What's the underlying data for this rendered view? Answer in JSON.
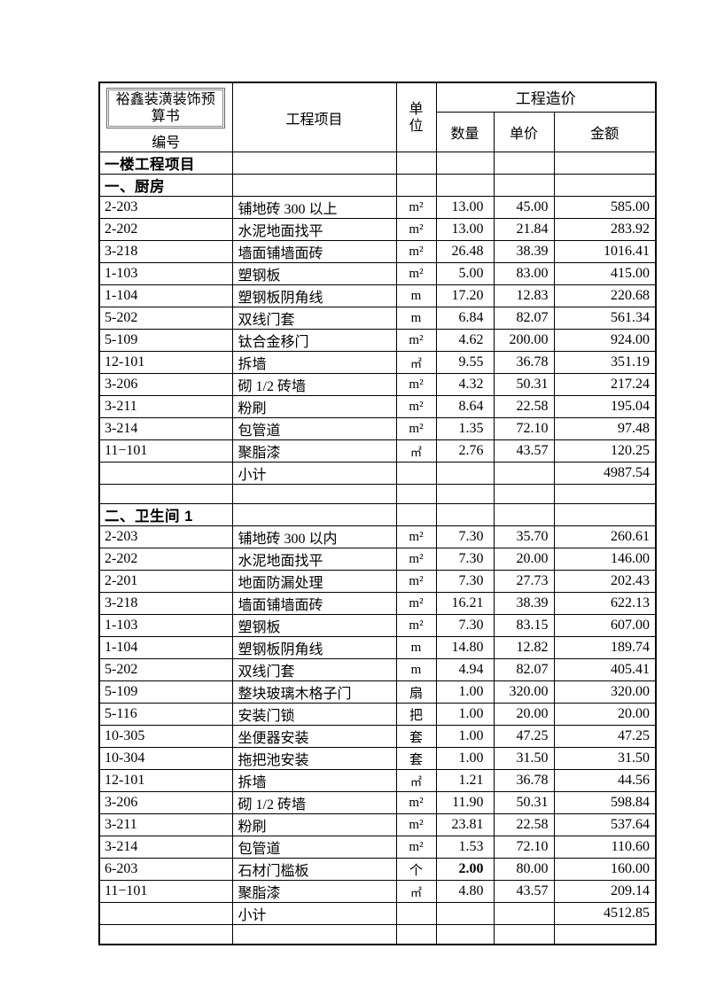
{
  "header": {
    "org_title": "裕鑫装潢装饰预算书",
    "code_label": "编号",
    "project_label": "工程项目",
    "unit_label": "单位",
    "cost_label": "工程造价",
    "qty_label": "数量",
    "price_label": "单价",
    "amount_label": "金额"
  },
  "floor_title": "一楼工程项目",
  "subtotal_label": "小计",
  "sections": [
    {
      "title": "一、厨房",
      "rows": [
        {
          "code": "2-203",
          "item": "铺地砖 300 以上",
          "unit": "m²",
          "qty": "13.00",
          "price": "45.00",
          "amount": "585.00"
        },
        {
          "code": "2-202",
          "item": "水泥地面找平",
          "unit": "m²",
          "qty": "13.00",
          "price": "21.84",
          "amount": "283.92"
        },
        {
          "code": "3-218",
          "item": "墙面铺墙面砖",
          "unit": "m²",
          "qty": "26.48",
          "price": "38.39",
          "amount": "1016.41"
        },
        {
          "code": "1-103",
          "item": "塑钢板",
          "unit": "m²",
          "qty": "5.00",
          "price": "83.00",
          "amount": "415.00"
        },
        {
          "code": "1-104",
          "item": "塑钢板阴角线",
          "unit": "m",
          "qty": "17.20",
          "price": "12.83",
          "amount": "220.68"
        },
        {
          "code": "5-202",
          "item": "双线门套",
          "unit": "m",
          "qty": "6.84",
          "price": "82.07",
          "amount": "561.34"
        },
        {
          "code": "5-109",
          "item": "钛合金移门",
          "unit": "m²",
          "qty": "4.62",
          "price": "200.00",
          "amount": "924.00"
        },
        {
          "code": "12-101",
          "item": "拆墙",
          "unit": "㎡",
          "qty": "9.55",
          "price": "36.78",
          "amount": "351.19"
        },
        {
          "code": "3-206",
          "item": "砌 1/2 砖墙",
          "unit": "m²",
          "qty": "4.32",
          "price": "50.31",
          "amount": "217.24"
        },
        {
          "code": "3-211",
          "item": "粉刷",
          "unit": "m²",
          "qty": "8.64",
          "price": "22.58",
          "amount": "195.04"
        },
        {
          "code": "3-214",
          "item": "包管道",
          "unit": "m²",
          "qty": "1.35",
          "price": "72.10",
          "amount": "97.48"
        },
        {
          "code": "11−101",
          "item": "聚脂漆",
          "unit": "㎡",
          "qty": "2.76",
          "price": "43.57",
          "amount": "120.25"
        }
      ],
      "subtotal": "4987.54"
    },
    {
      "title": "二、卫生间 1",
      "rows": [
        {
          "code": "2-203",
          "item": "铺地砖 300 以内",
          "unit": "m²",
          "qty": "7.30",
          "price": "35.70",
          "amount": "260.61"
        },
        {
          "code": "2-202",
          "item": "水泥地面找平",
          "unit": "m²",
          "qty": "7.30",
          "price": "20.00",
          "amount": "146.00"
        },
        {
          "code": "2-201",
          "item": "地面防漏处理",
          "unit": "m²",
          "qty": "7.30",
          "price": "27.73",
          "amount": "202.43"
        },
        {
          "code": "3-218",
          "item": "墙面铺墙面砖",
          "unit": "m²",
          "qty": "16.21",
          "price": "38.39",
          "amount": "622.13"
        },
        {
          "code": "1-103",
          "item": "塑钢板",
          "unit": "m²",
          "qty": "7.30",
          "price": "83.15",
          "amount": "607.00"
        },
        {
          "code": "1-104",
          "item": "塑钢板阴角线",
          "unit": "m",
          "qty": "14.80",
          "price": "12.82",
          "amount": "189.74"
        },
        {
          "code": "5-202",
          "item": "双线门套",
          "unit": "m",
          "qty": "4.94",
          "price": "82.07",
          "amount": "405.41"
        },
        {
          "code": "5-109",
          "item": "整块玻璃木格子门",
          "unit": "扇",
          "qty": "1.00",
          "price": "320.00",
          "amount": "320.00"
        },
        {
          "code": "5-116",
          "item": "安装门锁",
          "unit": "把",
          "qty": "1.00",
          "price": "20.00",
          "amount": "20.00"
        },
        {
          "code": "10-305",
          "item": "坐便器安装",
          "unit": "套",
          "qty": "1.00",
          "price": "47.25",
          "amount": "47.25"
        },
        {
          "code": "10-304",
          "item": "拖把池安装",
          "unit": "套",
          "qty": "1.00",
          "price": "31.50",
          "amount": "31.50"
        },
        {
          "code": "12-101",
          "item": "拆墙",
          "unit": "㎡",
          "qty": "1.21",
          "price": "36.78",
          "amount": "44.56"
        },
        {
          "code": "3-206",
          "item": "砌 1/2 砖墙",
          "unit": "m²",
          "qty": "11.90",
          "price": "50.31",
          "amount": "598.84"
        },
        {
          "code": "3-211",
          "item": "粉刷",
          "unit": "m²",
          "qty": "23.81",
          "price": "22.58",
          "amount": "537.64"
        },
        {
          "code": "3-214",
          "item": "包管道",
          "unit": "m²",
          "qty": "1.53",
          "price": "72.10",
          "amount": "110.60"
        },
        {
          "code": "6-203",
          "item": "石材门槛板",
          "unit": "个",
          "qty": "2.00",
          "price": "80.00",
          "amount": "160.00",
          "qty_bold": true
        },
        {
          "code": "11−101",
          "item": "聚脂漆",
          "unit": "㎡",
          "qty": "4.80",
          "price": "43.57",
          "amount": "209.14"
        }
      ],
      "subtotal": "4512.85"
    }
  ]
}
